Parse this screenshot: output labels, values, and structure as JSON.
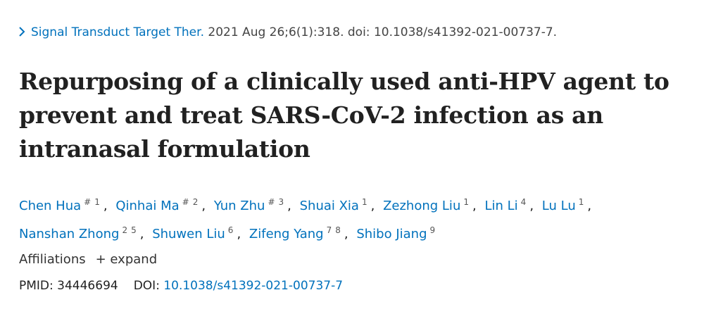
{
  "citation": {
    "journal": "Signal Transduct Target Ther.",
    "details": "2021 Aug 26;6(1):318. doi: 10.1038/s41392-021-00737-7."
  },
  "title": "Repurposing of a clinically used anti-HPV agent to prevent and treat SARS-CoV-2 infection as an intranasal formulation",
  "author_separator": ",",
  "authors": [
    {
      "name": "Chen Hua",
      "sups": [
        "#",
        "1"
      ]
    },
    {
      "name": "Qinhai Ma",
      "sups": [
        "#",
        "2"
      ]
    },
    {
      "name": "Yun Zhu",
      "sups": [
        "#",
        "3"
      ]
    },
    {
      "name": "Shuai Xia",
      "sups": [
        "1"
      ]
    },
    {
      "name": "Zezhong Liu",
      "sups": [
        "1"
      ]
    },
    {
      "name": "Lin Li",
      "sups": [
        "4"
      ]
    },
    {
      "name": "Lu Lu",
      "sups": [
        "1"
      ]
    },
    {
      "name": "Nanshan Zhong",
      "sups": [
        "2",
        "5"
      ]
    },
    {
      "name": "Shuwen Liu",
      "sups": [
        "6"
      ]
    },
    {
      "name": "Zifeng Yang",
      "sups": [
        "7",
        "8"
      ]
    },
    {
      "name": "Shibo Jiang",
      "sups": [
        "9"
      ]
    }
  ],
  "affiliations": {
    "label": "Affiliations",
    "toggle": "+ expand"
  },
  "ids": {
    "pmid_label": "PMID:",
    "pmid": "34446694",
    "doi_label": "DOI:",
    "doi": "10.1038/s41392-021-00737-7"
  }
}
